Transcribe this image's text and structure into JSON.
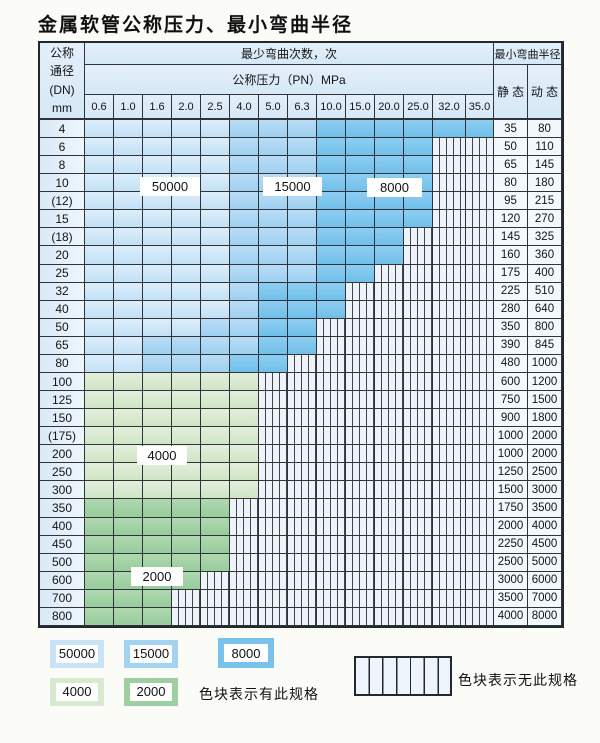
{
  "title": "金属软管公称压力、最小弯曲半径",
  "table": {
    "header": {
      "dn_lines": [
        "公称",
        "通径",
        "(DN)",
        "mm"
      ],
      "bend_cycles_label": "最少弯曲次数，次",
      "pressure_label": "公称压力（PN）MPa",
      "radius_label": "最小弯曲半径",
      "static_label": "静 态",
      "dynamic_label": "动 态",
      "pressures": [
        "0.6",
        "1.0",
        "1.6",
        "2.0",
        "2.5",
        "4.0",
        "5.0",
        "6.3",
        "10.0",
        "15.0",
        "20.0",
        "25.0",
        "32.0",
        "35.0"
      ]
    },
    "cycle_color_key": {
      "L": "50000",
      "M": "15000",
      "D": "8000",
      "G4": "4000",
      "G2": "2000",
      "N": "无此规格"
    },
    "rows": [
      {
        "dn": "4",
        "cells": [
          "L",
          "L",
          "L",
          "L",
          "L",
          "M",
          "M",
          "M",
          "D",
          "D",
          "D",
          "D",
          "D",
          "D"
        ],
        "static": "35",
        "dynamic": "80"
      },
      {
        "dn": "6",
        "cells": [
          "L",
          "L",
          "L",
          "L",
          "L",
          "M",
          "M",
          "M",
          "D",
          "D",
          "D",
          "D",
          "N",
          "N"
        ],
        "static": "50",
        "dynamic": "110"
      },
      {
        "dn": "8",
        "cells": [
          "L",
          "L",
          "L",
          "L",
          "L",
          "M",
          "M",
          "M",
          "D",
          "D",
          "D",
          "D",
          "N",
          "N"
        ],
        "static": "65",
        "dynamic": "145"
      },
      {
        "dn": "10",
        "cells": [
          "L",
          "L",
          "L",
          "L",
          "L",
          "M",
          "M",
          "M",
          "D",
          "D",
          "D",
          "D",
          "N",
          "N"
        ],
        "static": "80",
        "dynamic": "180"
      },
      {
        "dn": "(12)",
        "cells": [
          "L",
          "L",
          "L",
          "L",
          "L",
          "M",
          "M",
          "M",
          "D",
          "D",
          "D",
          "D",
          "N",
          "N"
        ],
        "static": "95",
        "dynamic": "215"
      },
      {
        "dn": "15",
        "cells": [
          "L",
          "L",
          "L",
          "L",
          "L",
          "M",
          "M",
          "M",
          "D",
          "D",
          "D",
          "D",
          "N",
          "N"
        ],
        "static": "120",
        "dynamic": "270"
      },
      {
        "dn": "(18)",
        "cells": [
          "L",
          "L",
          "L",
          "L",
          "L",
          "M",
          "M",
          "M",
          "D",
          "D",
          "D",
          "N",
          "N",
          "N"
        ],
        "static": "145",
        "dynamic": "325"
      },
      {
        "dn": "20",
        "cells": [
          "L",
          "L",
          "L",
          "L",
          "L",
          "M",
          "M",
          "M",
          "D",
          "D",
          "D",
          "N",
          "N",
          "N"
        ],
        "static": "160",
        "dynamic": "360"
      },
      {
        "dn": "25",
        "cells": [
          "L",
          "L",
          "L",
          "L",
          "L",
          "M",
          "M",
          "M",
          "D",
          "D",
          "N",
          "N",
          "N",
          "N"
        ],
        "static": "175",
        "dynamic": "400"
      },
      {
        "dn": "32",
        "cells": [
          "L",
          "L",
          "L",
          "L",
          "L",
          "M",
          "D",
          "D",
          "D",
          "N",
          "N",
          "N",
          "N",
          "N"
        ],
        "static": "225",
        "dynamic": "510"
      },
      {
        "dn": "40",
        "cells": [
          "L",
          "L",
          "L",
          "L",
          "L",
          "M",
          "D",
          "D",
          "D",
          "N",
          "N",
          "N",
          "N",
          "N"
        ],
        "static": "280",
        "dynamic": "640"
      },
      {
        "dn": "50",
        "cells": [
          "L",
          "L",
          "L",
          "L",
          "M",
          "M",
          "D",
          "D",
          "N",
          "N",
          "N",
          "N",
          "N",
          "N"
        ],
        "static": "350",
        "dynamic": "800"
      },
      {
        "dn": "65",
        "cells": [
          "L",
          "L",
          "M",
          "M",
          "M",
          "M",
          "D",
          "D",
          "N",
          "N",
          "N",
          "N",
          "N",
          "N"
        ],
        "static": "390",
        "dynamic": "845"
      },
      {
        "dn": "80",
        "cells": [
          "L",
          "L",
          "M",
          "M",
          "M",
          "D",
          "D",
          "N",
          "N",
          "N",
          "N",
          "N",
          "N",
          "N"
        ],
        "static": "480",
        "dynamic": "1000"
      },
      {
        "dn": "100",
        "cells": [
          "G4",
          "G4",
          "G4",
          "G4",
          "G4",
          "G4",
          "N",
          "N",
          "N",
          "N",
          "N",
          "N",
          "N",
          "N"
        ],
        "static": "600",
        "dynamic": "1200"
      },
      {
        "dn": "125",
        "cells": [
          "G4",
          "G4",
          "G4",
          "G4",
          "G4",
          "G4",
          "N",
          "N",
          "N",
          "N",
          "N",
          "N",
          "N",
          "N"
        ],
        "static": "750",
        "dynamic": "1500"
      },
      {
        "dn": "150",
        "cells": [
          "G4",
          "G4",
          "G4",
          "G4",
          "G4",
          "G4",
          "N",
          "N",
          "N",
          "N",
          "N",
          "N",
          "N",
          "N"
        ],
        "static": "900",
        "dynamic": "1800"
      },
      {
        "dn": "(175)",
        "cells": [
          "G4",
          "G4",
          "G4",
          "G4",
          "G4",
          "G4",
          "N",
          "N",
          "N",
          "N",
          "N",
          "N",
          "N",
          "N"
        ],
        "static": "1000",
        "dynamic": "2000"
      },
      {
        "dn": "200",
        "cells": [
          "G4",
          "G4",
          "G4",
          "G4",
          "G4",
          "G4",
          "N",
          "N",
          "N",
          "N",
          "N",
          "N",
          "N",
          "N"
        ],
        "static": "1000",
        "dynamic": "2000"
      },
      {
        "dn": "250",
        "cells": [
          "G4",
          "G4",
          "G4",
          "G4",
          "G4",
          "G4",
          "N",
          "N",
          "N",
          "N",
          "N",
          "N",
          "N",
          "N"
        ],
        "static": "1250",
        "dynamic": "2500"
      },
      {
        "dn": "300",
        "cells": [
          "G4",
          "G4",
          "G4",
          "G4",
          "G4",
          "G4",
          "N",
          "N",
          "N",
          "N",
          "N",
          "N",
          "N",
          "N"
        ],
        "static": "1500",
        "dynamic": "3000"
      },
      {
        "dn": "350",
        "cells": [
          "G2",
          "G2",
          "G2",
          "G2",
          "G2",
          "N",
          "N",
          "N",
          "N",
          "N",
          "N",
          "N",
          "N",
          "N"
        ],
        "static": "1750",
        "dynamic": "3500"
      },
      {
        "dn": "400",
        "cells": [
          "G2",
          "G2",
          "G2",
          "G2",
          "G2",
          "N",
          "N",
          "N",
          "N",
          "N",
          "N",
          "N",
          "N",
          "N"
        ],
        "static": "2000",
        "dynamic": "4000"
      },
      {
        "dn": "450",
        "cells": [
          "G2",
          "G2",
          "G2",
          "G2",
          "G2",
          "N",
          "N",
          "N",
          "N",
          "N",
          "N",
          "N",
          "N",
          "N"
        ],
        "static": "2250",
        "dynamic": "4500"
      },
      {
        "dn": "500",
        "cells": [
          "G2",
          "G2",
          "G2",
          "G2",
          "G2",
          "N",
          "N",
          "N",
          "N",
          "N",
          "N",
          "N",
          "N",
          "N"
        ],
        "static": "2500",
        "dynamic": "5000"
      },
      {
        "dn": "600",
        "cells": [
          "G2",
          "G2",
          "G2",
          "G2",
          "N",
          "N",
          "N",
          "N",
          "N",
          "N",
          "N",
          "N",
          "N",
          "N"
        ],
        "static": "3000",
        "dynamic": "6000"
      },
      {
        "dn": "700",
        "cells": [
          "G2",
          "G2",
          "G2",
          "N",
          "N",
          "N",
          "N",
          "N",
          "N",
          "N",
          "N",
          "N",
          "N",
          "N"
        ],
        "static": "3500",
        "dynamic": "7000"
      },
      {
        "dn": "800",
        "cells": [
          "G2",
          "G2",
          "G2",
          "N",
          "N",
          "N",
          "N",
          "N",
          "N",
          "N",
          "N",
          "N",
          "N",
          "N"
        ],
        "static": "4000",
        "dynamic": "8000"
      }
    ]
  },
  "overlay_labels": [
    {
      "text": "50000"
    },
    {
      "text": "15000"
    },
    {
      "text": "8000"
    },
    {
      "text": "4000"
    },
    {
      "text": "2000"
    }
  ],
  "legend": {
    "swatches": [
      {
        "key": "L",
        "label": "50000"
      },
      {
        "key": "M",
        "label": "15000"
      },
      {
        "key": "D",
        "label": "8000"
      },
      {
        "key": "G4",
        "label": "4000"
      },
      {
        "key": "G2",
        "label": "2000"
      }
    ],
    "has_spec_text": "色块表示有此规格",
    "no_spec_text": "色块表示无此规格"
  },
  "colors": {
    "blue_50000": "#c9e3f6",
    "blue_15000": "#a4d3f1",
    "blue_8000": "#79c2eb",
    "green_4000": "#d7e9cf",
    "green_2000": "#9dcfa0",
    "no_spec_bg": "#eef3fa",
    "grid_line": "#2f343a"
  }
}
